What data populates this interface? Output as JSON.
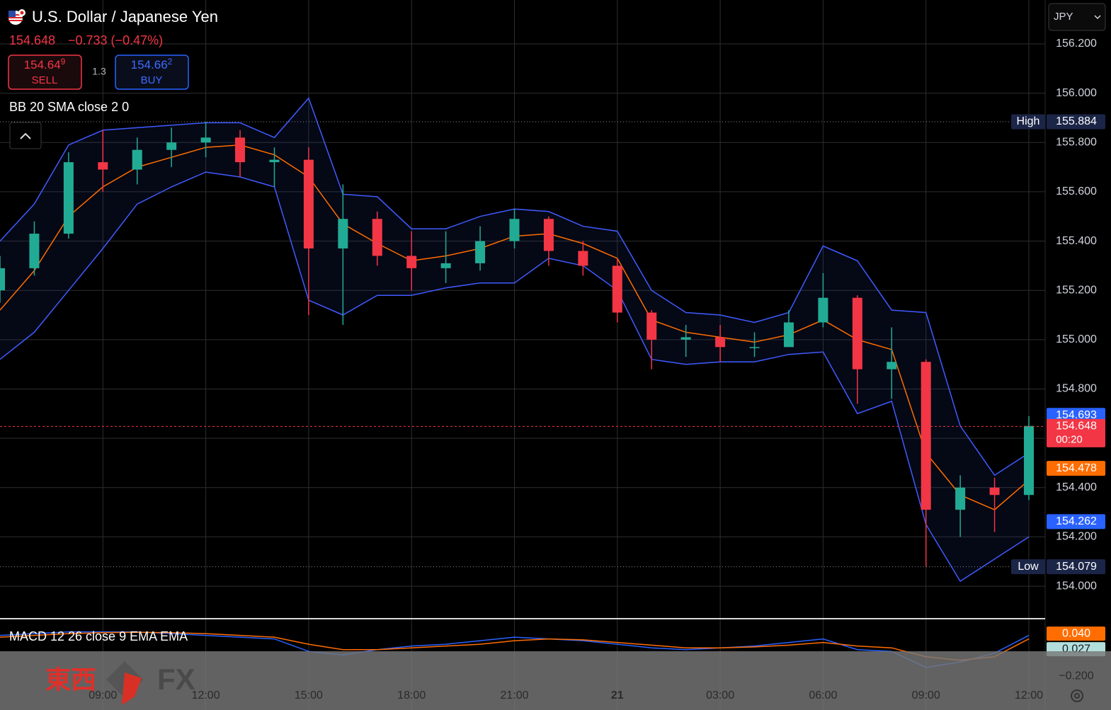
{
  "header": {
    "price": 154.648,
    "change": "−0.733 (−0.47%)",
    "sell": {
      "price": "154.64",
      "pip": "9",
      "label": "SELL"
    },
    "buy": {
      "price": "154.66",
      "pip": "2",
      "label": "BUY"
    },
    "spread": "1.3",
    "currency": "JPY"
  },
  "watermark": [
    "東西",
    "FX"
  ],
  "chart_data": {
    "type": "candlestick",
    "title": "U.S. Dollar / Japanese Yen",
    "categories": [
      null,
      null,
      null,
      "09:00",
      null,
      null,
      "12:00",
      null,
      null,
      "15:00",
      null,
      null,
      "18:00",
      null,
      null,
      "21:00",
      null,
      null,
      "21",
      null,
      null,
      "03:00",
      null,
      null,
      "06:00",
      null,
      null,
      "09:00",
      null,
      null,
      "12:00"
    ],
    "open": [
      155.2,
      155.29,
      155.43,
      155.72,
      155.69,
      155.77,
      155.8,
      155.82,
      155.72,
      155.73,
      155.37,
      155.49,
      155.34,
      155.29,
      155.31,
      155.4,
      155.49,
      155.36,
      155.3,
      155.11,
      155.0,
      155.01,
      154.97,
      154.97,
      155.07,
      155.17,
      154.88,
      154.91,
      154.31,
      154.4,
      154.37
    ],
    "high": [
      155.34,
      155.48,
      155.76,
      155.85,
      155.82,
      155.86,
      155.884,
      155.85,
      155.78,
      155.78,
      155.63,
      155.52,
      155.44,
      155.44,
      155.46,
      155.53,
      155.5,
      155.4,
      155.33,
      155.12,
      155.06,
      155.06,
      155.03,
      155.12,
      155.27,
      155.18,
      155.05,
      154.92,
      154.45,
      154.44,
      154.69
    ],
    "low": [
      155.15,
      155.26,
      155.41,
      155.6,
      155.63,
      155.7,
      155.74,
      155.66,
      155.62,
      155.1,
      155.06,
      155.3,
      155.2,
      155.23,
      155.28,
      155.37,
      155.3,
      155.26,
      155.07,
      154.88,
      154.93,
      154.91,
      154.93,
      154.97,
      155.05,
      154.74,
      154.76,
      154.079,
      154.2,
      154.22,
      154.35
    ],
    "close": [
      155.29,
      155.43,
      155.72,
      155.69,
      155.77,
      155.8,
      155.82,
      155.72,
      155.73,
      155.37,
      155.49,
      155.34,
      155.29,
      155.31,
      155.4,
      155.49,
      155.36,
      155.3,
      155.11,
      155.0,
      155.01,
      154.97,
      154.97,
      155.07,
      155.17,
      154.88,
      154.91,
      154.31,
      154.4,
      154.37,
      154.65
    ],
    "up_color": "#22ab94",
    "down_color": "#f23645",
    "ylim": [
      153.871,
      156.378
    ],
    "yticks": [
      {
        "value": 154.0,
        "label": "154.000"
      },
      {
        "value": 154.2,
        "label": "154.200"
      },
      {
        "value": 154.4,
        "label": "154.400"
      },
      {
        "value": 154.6,
        "label": "154.600"
      },
      {
        "value": 154.8,
        "label": "154.800"
      },
      {
        "value": 155.0,
        "label": "155.000"
      },
      {
        "value": 155.2,
        "label": "155.200"
      },
      {
        "value": 155.4,
        "label": "155.400"
      },
      {
        "value": 155.6,
        "label": "155.600"
      },
      {
        "value": 155.8,
        "label": "155.800"
      },
      {
        "value": 156.0,
        "label": "156.000"
      },
      {
        "value": 156.2,
        "label": "156.200"
      }
    ],
    "grid": true,
    "bb": {
      "label": "BB 20 SMA close 2 0",
      "band_color": "#3f5bff",
      "basis_color": "#ff6d00",
      "upper": [
        155.4,
        155.55,
        155.79,
        155.85,
        155.86,
        155.87,
        155.88,
        155.88,
        155.82,
        155.98,
        155.59,
        155.58,
        155.45,
        155.45,
        155.5,
        155.53,
        155.52,
        155.46,
        155.44,
        155.2,
        155.11,
        155.1,
        155.07,
        155.11,
        155.38,
        155.32,
        155.12,
        155.11,
        154.65,
        154.45,
        154.54
      ],
      "basis": [
        155.12,
        155.28,
        155.5,
        155.62,
        155.7,
        155.74,
        155.78,
        155.79,
        155.75,
        155.66,
        155.47,
        155.39,
        155.32,
        155.34,
        155.37,
        155.42,
        155.43,
        155.39,
        155.33,
        155.08,
        155.03,
        155.01,
        154.99,
        155.02,
        155.08,
        155.0,
        154.96,
        154.54,
        154.37,
        154.31,
        154.43
      ],
      "lower": [
        154.92,
        155.03,
        155.2,
        155.37,
        155.55,
        155.62,
        155.68,
        155.66,
        155.62,
        155.16,
        155.1,
        155.18,
        155.18,
        155.21,
        155.23,
        155.23,
        155.33,
        155.3,
        155.2,
        154.92,
        154.9,
        154.91,
        154.91,
        154.94,
        154.95,
        154.7,
        154.75,
        154.25,
        154.02,
        154.11,
        154.2
      ]
    },
    "levels": [
      {
        "label": "High",
        "value": 155.884,
        "color": "#1b2547",
        "line": "dotted"
      },
      {
        "label": "Low",
        "value": 154.079,
        "color": "#1b2547",
        "line": "dotted"
      },
      {
        "value": 154.693,
        "color": "#2962ff"
      },
      {
        "value": 154.648,
        "sub": "00:20",
        "color": "#f23645",
        "line": "dashed"
      },
      {
        "value": 154.478,
        "color": "#ff6d00"
      },
      {
        "value": 154.262,
        "color": "#2962ff"
      }
    ],
    "macd": {
      "label": "MACD 12 26 close 9 EMA EMA",
      "type": "line",
      "ylim": [
        -0.39,
        0.12
      ],
      "yticks": [
        {
          "value": -0.2,
          "label": "−0.200"
        }
      ],
      "series": [
        {
          "color": "#2962ff",
          "values": [
            0.03,
            0.04,
            0.05,
            0.05,
            0.05,
            0.04,
            0.03,
            0.02,
            0.01,
            -0.06,
            -0.08,
            -0.05,
            -0.03,
            -0.02,
            0.0,
            0.02,
            0.01,
            0.0,
            -0.02,
            -0.04,
            -0.05,
            -0.04,
            -0.03,
            -0.01,
            0.01,
            -0.05,
            -0.06,
            -0.15,
            -0.12,
            -0.07,
            0.03
          ]
        },
        {
          "color": "#ff6d00",
          "values": [
            0.02,
            0.03,
            0.04,
            0.045,
            0.047,
            0.045,
            0.04,
            0.03,
            0.02,
            -0.02,
            -0.05,
            -0.05,
            -0.04,
            -0.03,
            -0.02,
            0.0,
            0.01,
            0.005,
            -0.01,
            -0.025,
            -0.04,
            -0.04,
            -0.035,
            -0.025,
            -0.01,
            -0.03,
            -0.04,
            -0.09,
            -0.11,
            -0.09,
            0.01
          ]
        }
      ],
      "levels": [
        {
          "value": 0.04,
          "label": "0.040",
          "color": "#ff6d00",
          "text_color": "#ffffff"
        },
        {
          "value": 0.027,
          "color": "#b2dfdb",
          "text_color": "#131722"
        }
      ]
    }
  }
}
